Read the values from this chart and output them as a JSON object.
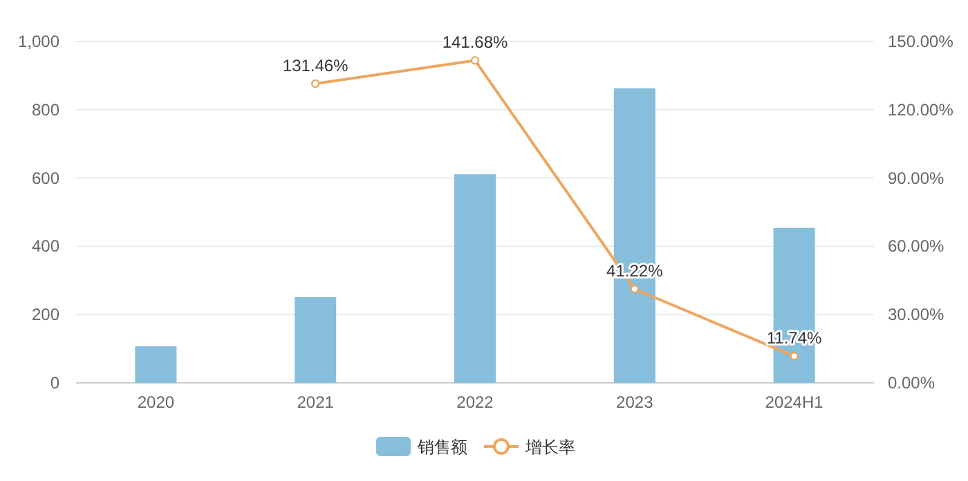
{
  "chart_data": {
    "type": "bar",
    "categories": [
      "2020",
      "2021",
      "2022",
      "2023",
      "2024H1"
    ],
    "series": [
      {
        "name": "销售额",
        "color": "#86bedc",
        "values": [
          107,
          251,
          611,
          863,
          454
        ]
      },
      {
        "name": "增长率",
        "type": "line",
        "axis": "y2",
        "color": "#eda660",
        "marker": "circle",
        "values": [
          null,
          131.46,
          141.68,
          41.22,
          11.74
        ],
        "value_labels": [
          null,
          "131.46%",
          "141.68%",
          "41.22%",
          "11.74%"
        ]
      }
    ],
    "ylim": [
      0,
      1000
    ],
    "yticks": [
      0,
      200,
      400,
      600,
      800,
      {
        "value": 1000,
        "label": "1,000"
      }
    ],
    "y2lim": [
      0,
      150
    ],
    "y2ticks": [
      {
        "value": 0,
        "label": "0.00%"
      },
      {
        "value": 30,
        "label": "30.00%"
      },
      {
        "value": 60,
        "label": "60.00%"
      },
      {
        "value": 90,
        "label": "90.00%"
      },
      {
        "value": 120,
        "label": "120.00%"
      },
      {
        "value": 150,
        "label": "150.00%"
      }
    ],
    "grid": "y",
    "legend": "bottom"
  }
}
